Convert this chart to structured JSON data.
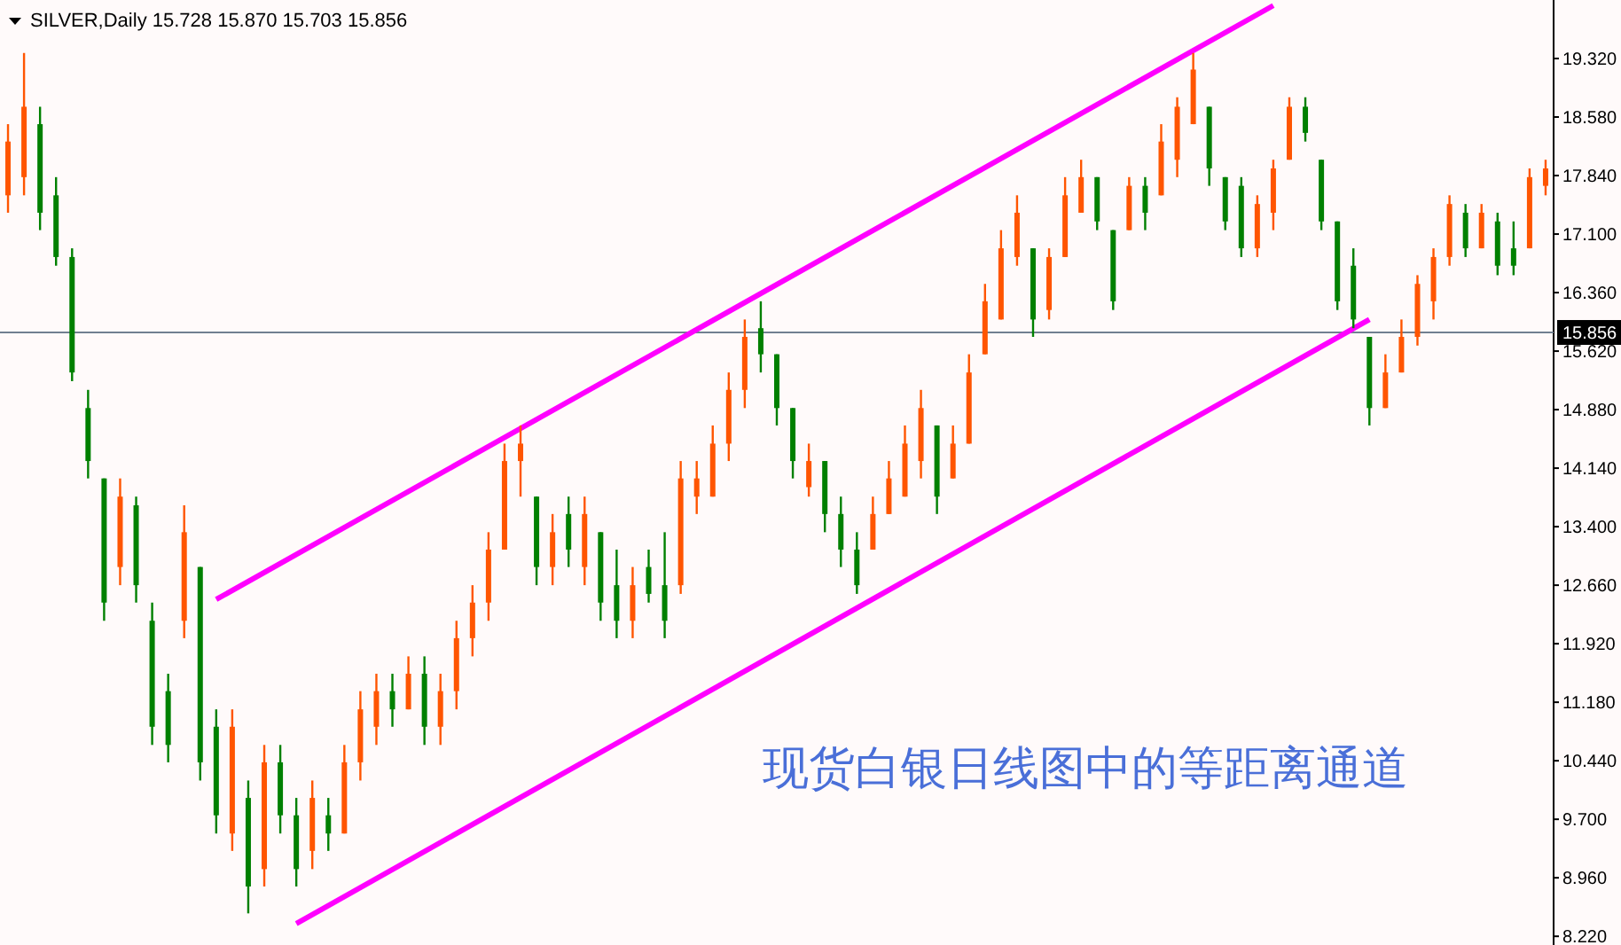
{
  "chart_data": {
    "type": "candlestick",
    "title": "SILVER,Daily  15.728 15.870 15.703 15.856",
    "annotations": [
      "现货白银日线图中的等距离通道"
    ],
    "ylim": [
      8.11,
      20.06
    ],
    "tick_labels": "y",
    "grid": false,
    "categories": [
      null,
      null,
      null,
      null,
      null,
      null,
      null,
      null,
      null,
      null,
      null,
      null,
      null,
      null,
      null,
      null,
      null,
      null,
      null,
      null,
      null,
      null,
      null,
      null,
      null,
      null,
      null,
      null,
      null,
      null,
      null,
      null,
      null,
      null,
      null,
      null,
      null,
      null,
      null,
      null,
      null,
      null,
      null,
      null,
      null,
      null,
      null,
      null,
      null,
      null,
      null,
      null,
      null,
      null,
      null,
      null,
      null,
      null,
      null,
      null,
      null,
      null,
      null,
      null,
      null,
      null,
      null,
      null,
      null,
      null,
      null,
      null,
      null,
      null,
      null,
      null,
      null,
      null,
      null,
      null,
      null,
      null,
      null,
      null,
      null,
      null,
      null,
      null,
      null,
      null,
      null,
      null,
      null,
      null,
      null,
      null,
      null
    ],
    "yticks": [
      {
        "value": 8.22,
        "label": "8.220"
      },
      {
        "value": 8.96,
        "label": "8.960"
      },
      {
        "value": 9.7,
        "label": "9.700"
      },
      {
        "value": 10.44,
        "label": "10.440"
      },
      {
        "value": 11.18,
        "label": "11.180"
      },
      {
        "value": 11.92,
        "label": "11.920"
      },
      {
        "value": 12.66,
        "label": "12.660"
      },
      {
        "value": 13.4,
        "label": "13.400"
      },
      {
        "value": 14.14,
        "label": "14.140"
      },
      {
        "value": 14.88,
        "label": "14.880"
      },
      {
        "value": 15.62,
        "label": "15.620"
      },
      {
        "value": 16.36,
        "label": "16.360"
      },
      {
        "value": 17.1,
        "label": "17.100"
      },
      {
        "value": 17.84,
        "label": "17.840"
      },
      {
        "value": 18.58,
        "label": "18.580"
      },
      {
        "value": 19.32,
        "label": "19.320"
      }
    ],
    "ref_lines": [
      {
        "axis": "y",
        "value": 15.856,
        "label": "15.856",
        "color": "#708090"
      }
    ],
    "series": [
      {
        "colors": [
          "#ff5500",
          "#ff5500",
          "#008000",
          "#008000",
          "#008000",
          "#008000",
          "#008000",
          "#ff5500",
          "#008000",
          "#008000",
          "#008000",
          "#ff5500",
          "#008000",
          "#008000",
          "#ff5500",
          "#008000",
          "#ff5500",
          "#008000",
          "#008000",
          "#ff5500",
          "#008000",
          "#ff5500",
          "#ff5500",
          "#ff5500",
          "#008000",
          "#ff5500",
          "#008000",
          "#ff5500",
          "#ff5500",
          "#ff5500",
          "#ff5500",
          "#ff5500",
          "#ff5500",
          "#008000",
          "#ff5500",
          "#008000",
          "#ff5500",
          "#008000",
          "#008000",
          "#ff5500",
          "#008000",
          "#008000",
          "#ff5500",
          "#ff5500",
          "#ff5500",
          "#ff5500",
          "#ff5500",
          "#008000",
          "#008000",
          "#008000",
          "#ff5500",
          "#008000",
          "#008000",
          "#008000",
          "#ff5500",
          "#ff5500",
          "#ff5500",
          "#ff5500",
          "#008000",
          "#ff5500",
          "#ff5500",
          "#ff5500",
          "#ff5500",
          "#ff5500",
          "#008000",
          "#ff5500",
          "#ff5500",
          "#ff5500",
          "#008000",
          "#008000",
          "#ff5500",
          "#008000",
          "#ff5500",
          "#ff5500",
          "#ff5500",
          "#008000",
          "#008000",
          "#008000",
          "#ff5500",
          "#ff5500",
          "#ff5500",
          "#008000",
          "#008000",
          "#008000",
          "#008000",
          "#008000",
          "#ff5500",
          "#ff5500",
          "#ff5500",
          "#ff5500",
          "#ff5500",
          "#008000",
          "#ff5500",
          "#008000",
          "#008000",
          "#ff5500",
          "#ff5500"
        ],
        "ohlc": [
          [
            17.59,
            18.49,
            17.37,
            18.27
          ],
          [
            17.82,
            19.39,
            17.59,
            18.71
          ],
          [
            18.49,
            18.71,
            17.15,
            17.37
          ],
          [
            17.59,
            17.82,
            16.7,
            16.81
          ],
          [
            16.81,
            16.92,
            15.24,
            15.35
          ],
          [
            14.9,
            15.13,
            14.01,
            14.23
          ],
          [
            14.01,
            14.01,
            12.21,
            12.44
          ],
          [
            12.89,
            14.01,
            12.66,
            13.78
          ],
          [
            13.67,
            13.78,
            12.44,
            12.66
          ],
          [
            12.21,
            12.44,
            10.64,
            10.87
          ],
          [
            11.32,
            11.54,
            10.42,
            10.64
          ],
          [
            12.21,
            13.67,
            11.99,
            13.33
          ],
          [
            12.89,
            12.89,
            10.19,
            10.42
          ],
          [
            10.87,
            11.09,
            9.52,
            9.75
          ],
          [
            9.52,
            11.09,
            9.3,
            10.87
          ],
          [
            9.97,
            10.19,
            8.51,
            8.85
          ],
          [
            9.07,
            10.64,
            8.85,
            10.42
          ],
          [
            10.42,
            10.64,
            9.52,
            9.75
          ],
          [
            9.75,
            9.97,
            8.85,
            9.07
          ],
          [
            9.3,
            10.19,
            9.07,
            9.97
          ],
          [
            9.75,
            9.97,
            9.3,
            9.52
          ],
          [
            9.52,
            10.64,
            9.52,
            10.42
          ],
          [
            10.42,
            11.32,
            10.19,
            11.09
          ],
          [
            10.87,
            11.54,
            10.64,
            11.32
          ],
          [
            11.32,
            11.54,
            10.87,
            11.09
          ],
          [
            11.09,
            11.76,
            11.09,
            11.54
          ],
          [
            11.54,
            11.76,
            10.64,
            10.87
          ],
          [
            10.87,
            11.54,
            10.64,
            11.32
          ],
          [
            11.32,
            12.21,
            11.09,
            11.99
          ],
          [
            11.99,
            12.66,
            11.76,
            12.44
          ],
          [
            12.44,
            13.33,
            12.21,
            13.11
          ],
          [
            13.11,
            14.45,
            13.11,
            14.23
          ],
          [
            14.23,
            14.68,
            13.78,
            14.45
          ],
          [
            13.78,
            13.78,
            12.66,
            12.89
          ],
          [
            12.89,
            13.56,
            12.66,
            13.33
          ],
          [
            13.56,
            13.78,
            12.89,
            13.11
          ],
          [
            12.89,
            13.78,
            12.66,
            13.56
          ],
          [
            13.33,
            13.33,
            12.21,
            12.44
          ],
          [
            12.66,
            13.11,
            11.99,
            12.21
          ],
          [
            12.21,
            12.89,
            11.99,
            12.66
          ],
          [
            12.89,
            13.11,
            12.44,
            12.55
          ],
          [
            12.66,
            13.33,
            11.99,
            12.21
          ],
          [
            12.66,
            14.23,
            12.55,
            14.01
          ],
          [
            13.78,
            14.23,
            13.56,
            14.01
          ],
          [
            13.78,
            14.68,
            13.78,
            14.45
          ],
          [
            14.45,
            15.35,
            14.23,
            15.13
          ],
          [
            15.13,
            16.02,
            14.9,
            15.8
          ],
          [
            15.91,
            16.25,
            15.35,
            15.58
          ],
          [
            15.58,
            15.58,
            14.68,
            14.9
          ],
          [
            14.9,
            14.9,
            14.01,
            14.23
          ],
          [
            13.9,
            14.45,
            13.78,
            14.23
          ],
          [
            14.23,
            14.23,
            13.33,
            13.56
          ],
          [
            13.56,
            13.78,
            12.89,
            13.11
          ],
          [
            13.11,
            13.33,
            12.55,
            12.66
          ],
          [
            13.11,
            13.78,
            13.11,
            13.56
          ],
          [
            13.56,
            14.23,
            13.56,
            14.01
          ],
          [
            13.78,
            14.68,
            13.78,
            14.45
          ],
          [
            14.23,
            15.13,
            14.01,
            14.9
          ],
          [
            14.68,
            14.68,
            13.56,
            13.78
          ],
          [
            14.01,
            14.68,
            14.01,
            14.45
          ],
          [
            14.45,
            15.58,
            14.45,
            15.35
          ],
          [
            15.58,
            16.47,
            15.58,
            16.25
          ],
          [
            16.02,
            17.15,
            16.02,
            16.92
          ],
          [
            16.81,
            17.59,
            16.7,
            17.37
          ],
          [
            16.92,
            16.92,
            15.8,
            16.02
          ],
          [
            16.14,
            16.92,
            16.02,
            16.81
          ],
          [
            16.81,
            17.82,
            16.81,
            17.59
          ],
          [
            17.37,
            18.04,
            17.37,
            17.82
          ],
          [
            17.82,
            17.82,
            17.15,
            17.26
          ],
          [
            17.15,
            17.15,
            16.14,
            16.25
          ],
          [
            17.15,
            17.82,
            17.15,
            17.71
          ],
          [
            17.71,
            17.82,
            17.15,
            17.37
          ],
          [
            17.59,
            18.49,
            17.59,
            18.27
          ],
          [
            18.04,
            18.83,
            17.82,
            18.71
          ],
          [
            18.49,
            19.39,
            18.49,
            19.18
          ],
          [
            18.71,
            18.71,
            17.71,
            17.93
          ],
          [
            17.82,
            17.82,
            17.15,
            17.26
          ],
          [
            17.71,
            17.82,
            16.81,
            16.92
          ],
          [
            16.92,
            17.59,
            16.81,
            17.48
          ],
          [
            17.37,
            18.04,
            17.15,
            17.93
          ],
          [
            18.04,
            18.83,
            18.04,
            18.71
          ],
          [
            18.71,
            18.83,
            18.27,
            18.38
          ],
          [
            18.04,
            18.04,
            17.15,
            17.26
          ],
          [
            17.26,
            17.26,
            16.14,
            16.25
          ],
          [
            16.7,
            16.92,
            15.91,
            16.02
          ],
          [
            15.8,
            15.8,
            14.68,
            14.9
          ],
          [
            14.9,
            15.58,
            14.9,
            15.35
          ],
          [
            15.35,
            16.02,
            15.35,
            15.8
          ],
          [
            15.8,
            16.58,
            15.69,
            16.47
          ],
          [
            16.25,
            16.92,
            16.02,
            16.81
          ],
          [
            16.81,
            17.59,
            16.7,
            17.48
          ],
          [
            17.37,
            17.48,
            16.81,
            16.92
          ],
          [
            16.92,
            17.48,
            16.92,
            17.37
          ],
          [
            17.26,
            17.37,
            16.58,
            16.7
          ],
          [
            16.92,
            17.26,
            16.58,
            16.7
          ],
          [
            16.92,
            17.93,
            16.92,
            17.82
          ],
          [
            17.71,
            18.04,
            17.59,
            17.93
          ]
        ]
      },
      {
        "type": "line",
        "color": "#ff00ff",
        "values": [
          null,
          null,
          null,
          null,
          null,
          null,
          null,
          null,
          null,
          null,
          null,
          null,
          null,
          12.48,
          null,
          null,
          null,
          null,
          null,
          null,
          null,
          null,
          null,
          null,
          null,
          null,
          null,
          null,
          null,
          null,
          null,
          null,
          null,
          null,
          null,
          null,
          null,
          null,
          null,
          null,
          null,
          null,
          null,
          null,
          null,
          null,
          null,
          null,
          null,
          null,
          null,
          null,
          null,
          null,
          null,
          null,
          null,
          null,
          null,
          null,
          null,
          null,
          null,
          null,
          null,
          null,
          null,
          null,
          null,
          null,
          null,
          null,
          null,
          null,
          null,
          null,
          null,
          null,
          null,
          19.99,
          null,
          null,
          null,
          null,
          null,
          null,
          null,
          null,
          null,
          null,
          null,
          null,
          null,
          null,
          null,
          null,
          null
        ]
      },
      {
        "type": "line",
        "color": "#ff00ff",
        "values": [
          null,
          null,
          null,
          null,
          null,
          null,
          null,
          null,
          null,
          null,
          null,
          null,
          null,
          null,
          null,
          null,
          null,
          null,
          8.38,
          null,
          null,
          null,
          null,
          null,
          null,
          null,
          null,
          null,
          null,
          null,
          null,
          null,
          null,
          null,
          null,
          null,
          null,
          null,
          null,
          null,
          null,
          null,
          null,
          null,
          null,
          null,
          null,
          null,
          null,
          null,
          null,
          null,
          null,
          null,
          null,
          null,
          null,
          null,
          null,
          null,
          null,
          null,
          null,
          null,
          null,
          null,
          null,
          null,
          null,
          null,
          null,
          null,
          null,
          null,
          null,
          null,
          null,
          null,
          null,
          null,
          null,
          null,
          null,
          null,
          null,
          16.02,
          null,
          null,
          null,
          null,
          null,
          null,
          null,
          null,
          null,
          null,
          null
        ]
      }
    ]
  }
}
